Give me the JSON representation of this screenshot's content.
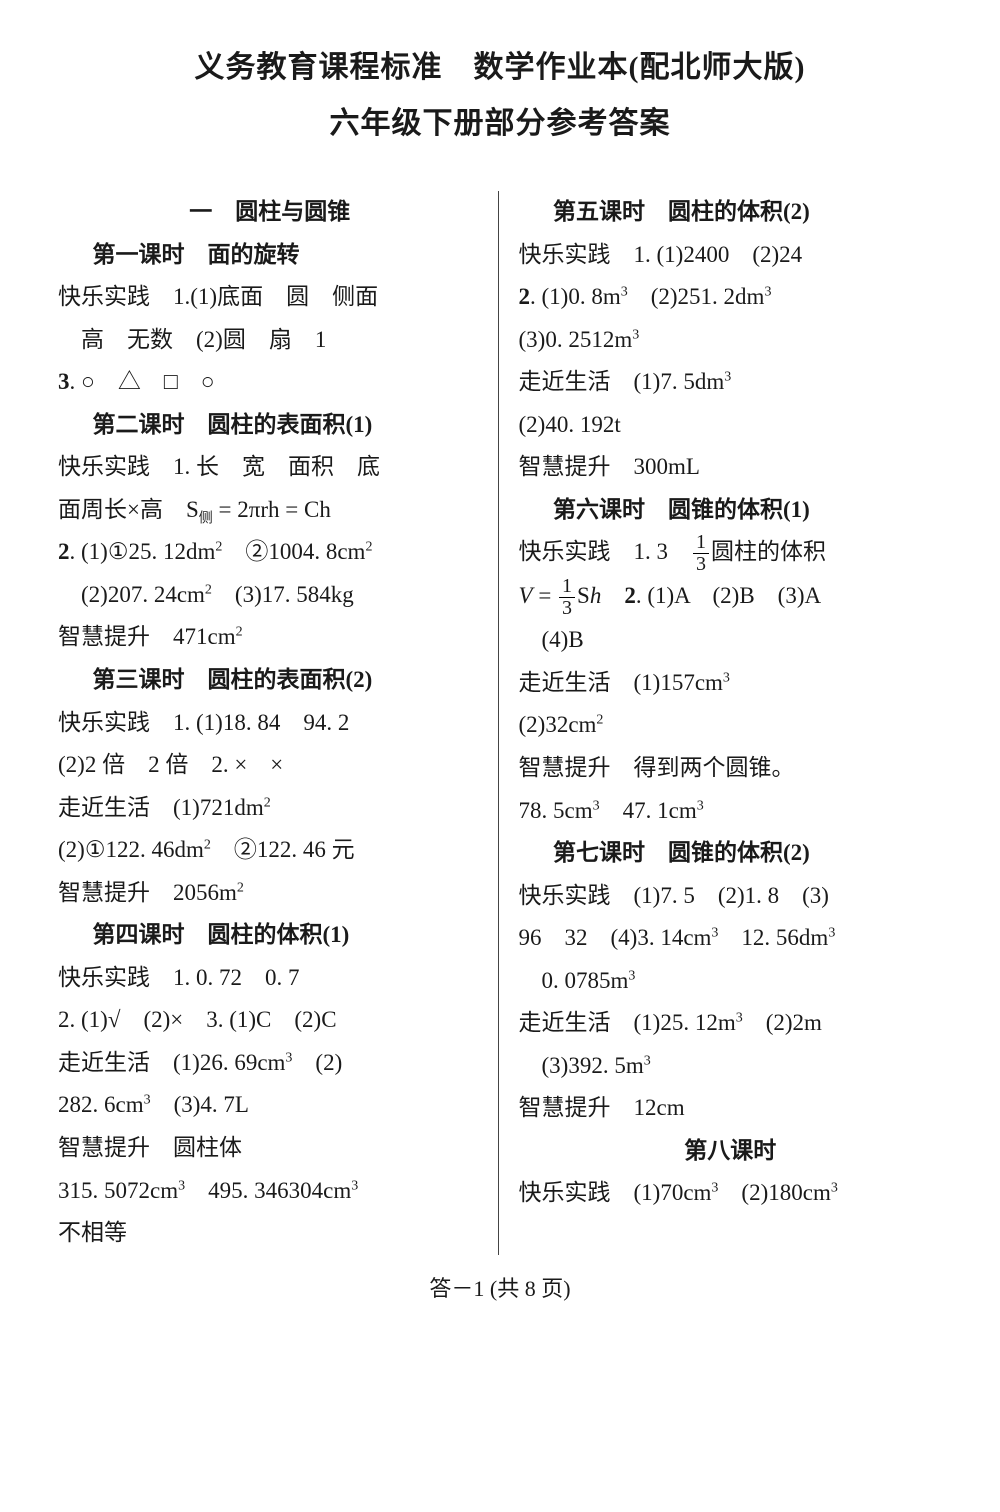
{
  "title1": "义务教育课程标准　数学作业本(配北师大版)",
  "title2": "六年级下册部分参考答案",
  "left": {
    "chapter": "一　圆柱与圆锥",
    "l1": "第一课时　面的旋转",
    "l1a": "快乐实践　1.(1)底面　圆　侧面",
    "l1b": "　高　无数　(2)圆　扇　1",
    "l1c": "3. ○　△　□　○",
    "l2": "第二课时　圆柱的表面积(1)",
    "l2a": "快乐实践　1. 长　宽　面积　底",
    "l2b_pre": "面周长×高　S",
    "l2b_sub": "侧",
    "l2b_post": " = 2πrh = Ch",
    "l2c_pre": "2. (1)①25. 12dm",
    "l2c_mid": "　②1004. 8cm",
    "l2d_pre": "　(2)207. 24cm",
    "l2d_post": "　(3)17. 584kg",
    "l2e_pre": "智慧提升　471cm",
    "l3": "第三课时　圆柱的表面积(2)",
    "l3a": "快乐实践　1. (1)18. 84　94. 2",
    "l3b": "(2)2 倍　2 倍　2. ×　×",
    "l3c_pre": "走近生活　(1)721dm",
    "l3d_pre": "(2)①122. 46dm",
    "l3d_post": "　②122. 46 元",
    "l3e_pre": "智慧提升　2056m",
    "l4": "第四课时　圆柱的体积(1)",
    "l4a": "快乐实践　1. 0. 72　0. 7",
    "l4b": "2. (1)√　(2)×　3. (1)C　(2)C",
    "l4c_pre": "走近生活　(1)26. 69cm",
    "l4c_post": "　(2)",
    "l4d_pre": "282. 6cm",
    "l4d_post": "　(3)4. 7L",
    "l4e": "智慧提升　圆柱体",
    "l4f_pre": "315. 5072cm",
    "l4f_mid": "　495. 346304cm",
    "l4g": "不相等"
  },
  "right": {
    "l5": "第五课时　圆柱的体积(2)",
    "l5a": "快乐实践　1. (1)2400　(2)24",
    "l5b_pre": "2. (1)0. 8m",
    "l5b_mid": "　(2)251. 2dm",
    "l5c_pre": "(3)0. 2512m",
    "l5d_pre": "走近生活　(1)7. 5dm",
    "l5e": "(2)40. 192t",
    "l5f": "智慧提升　300mL",
    "l6": "第六课时　圆锥的体积(1)",
    "l6a_pre": "快乐实践　1. 3　",
    "l6a_post": "圆柱的体积",
    "l6b_pre": "V =",
    "l6b_mid": "Sh　2. (1)A　(2)B　(3)A",
    "l6c": "　(4)B",
    "l6d_pre": "走近生活　(1)157cm",
    "l6e_pre": "(2)32cm",
    "l6f": "智慧提升　得到两个圆锥。",
    "l6g_pre": "78. 5cm",
    "l6g_mid": "　47. 1cm",
    "l7": "第七课时　圆锥的体积(2)",
    "l7a": "快乐实践　(1)7. 5　(2)1. 8　(3)",
    "l7b_pre": "96　32　(4)3. 14cm",
    "l7b_mid": "　12. 56dm",
    "l7c_pre": "　0. 0785m",
    "l7d_pre": "走近生活　(1)25. 12m",
    "l7d_post": "　(2)2m",
    "l7e_pre": "　(3)392. 5m",
    "l7f": "智慧提升　12cm",
    "l8": "第八课时",
    "l8a_pre": "快乐实践　(1)70cm",
    "l8a_mid": "　(2)180cm"
  },
  "footer": "答－1 (共 8 页)",
  "frac_num": "1",
  "frac_den": "3",
  "sup2": "2",
  "sup3": "3"
}
